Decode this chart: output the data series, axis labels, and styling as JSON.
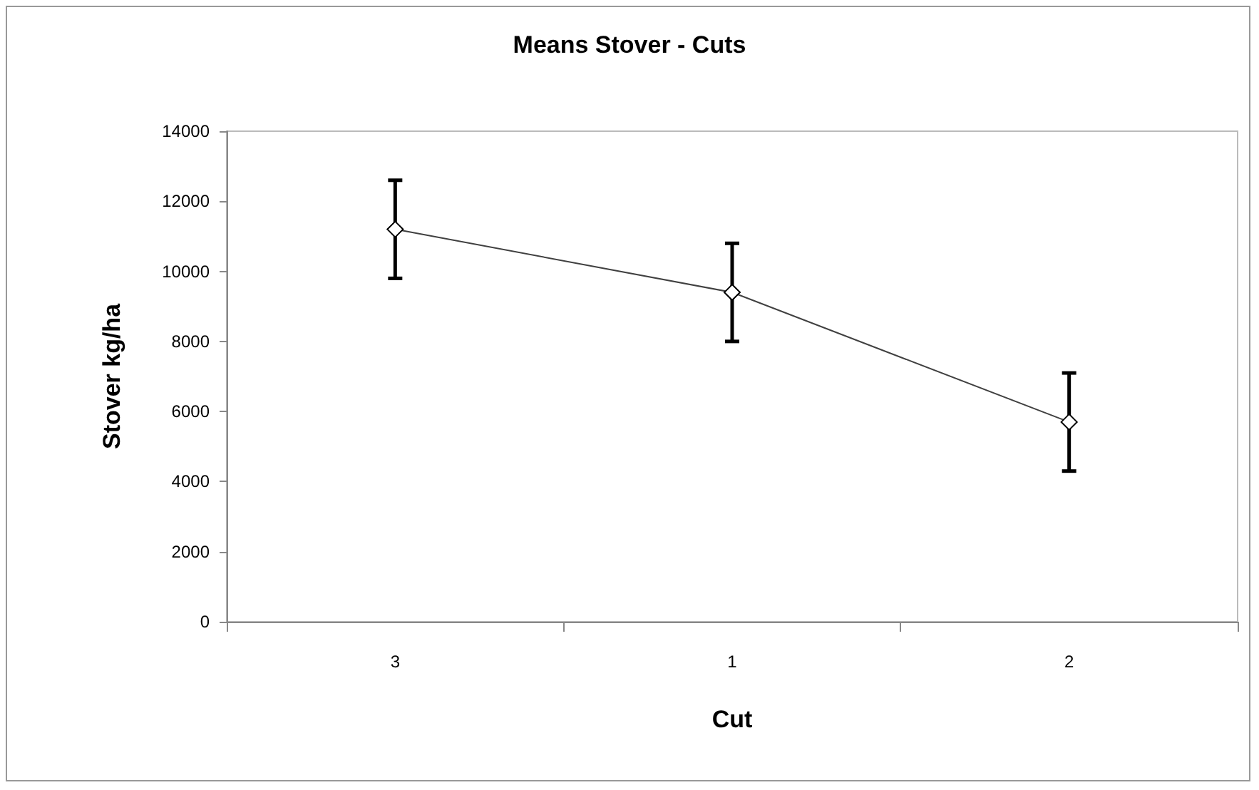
{
  "chart_data": {
    "type": "line",
    "title": "Means Stover - Cuts",
    "xlabel": "Cut",
    "ylabel": "Stover kg/ha",
    "categories": [
      "3",
      "1",
      "2"
    ],
    "series": [
      {
        "color": "#000000",
        "values": [
          11200,
          9400,
          5700
        ],
        "errors": [
          1400,
          1400,
          1400
        ]
      }
    ],
    "ylim": [
      0,
      14000
    ],
    "yticks": [
      0,
      2000,
      4000,
      6000,
      8000,
      10000,
      12000,
      14000
    ],
    "grid": false,
    "marker": "diamond",
    "line_style": "solid"
  }
}
